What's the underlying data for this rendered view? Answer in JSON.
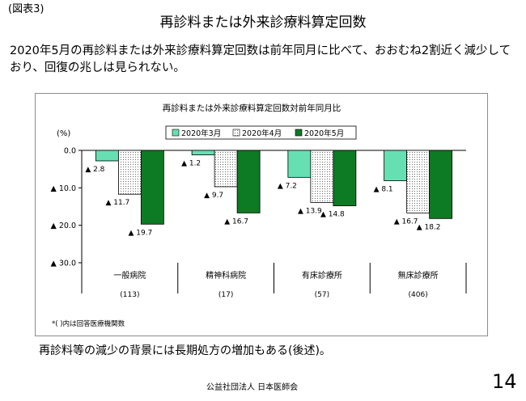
{
  "fig_label": "(図表3)",
  "slide_title": "再診料または外来診療料算定回数",
  "lead_text": "2020年5月の再診料または外来診療料算定回数は前年同月に比べて、おおむね2割近く減少しており、回復の兆しは見られない。",
  "bottom_note": "再診料等の減少の背景には長期処方の増加もある(後述)。",
  "footer_org": "公益社団法人 日本医師会",
  "page_number": "14",
  "colors": {
    "mar": "#66e0b2",
    "apr": "#ffffff",
    "may": "#0d7a24"
  },
  "chart_data": {
    "type": "bar",
    "title": "再診料または外来診療料算定回数対前年同月比",
    "ylabel": "(%)",
    "ylim": [
      0,
      30
    ],
    "y_direction": "decrease-downward",
    "yticks": [
      {
        "value": 0,
        "label": "0.0"
      },
      {
        "value": 10,
        "label": "▲ 10.0"
      },
      {
        "value": 20,
        "label": "▲ 20.0"
      },
      {
        "value": 30,
        "label": "▲ 30.0"
      }
    ],
    "categories": [
      "一般病院",
      "精神科病院",
      "有床診療所",
      "無床診療所"
    ],
    "category_counts": [
      "(113)",
      "(17)",
      "(57)",
      "(406)"
    ],
    "legend_position": "top-center",
    "grid": false,
    "series": [
      {
        "name": "2020年3月",
        "values": [
          2.8,
          1.2,
          7.2,
          8.1
        ],
        "labels": [
          "▲ 2.8",
          "▲ 1.2",
          "▲ 7.2",
          "▲ 8.1"
        ]
      },
      {
        "name": "2020年4月",
        "values": [
          11.7,
          9.7,
          13.9,
          16.7
        ],
        "labels": [
          "▲ 11.7",
          "▲ 9.7",
          "▲ 13.9",
          "▲ 16.7"
        ]
      },
      {
        "name": "2020年5月",
        "values": [
          19.7,
          16.7,
          14.8,
          18.2
        ],
        "labels": [
          "▲ 19.7",
          "▲ 16.7",
          "▲ 14.8",
          "▲ 18.2"
        ]
      }
    ],
    "footnote": "*( )内は回答医療機関数"
  }
}
